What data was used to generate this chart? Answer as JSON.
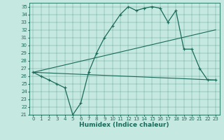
{
  "xlabel": "Humidex (Indice chaleur)",
  "background_color": "#c5e8e0",
  "line_color": "#1a6b5a",
  "xlim": [
    -0.5,
    23.5
  ],
  "ylim": [
    21,
    35.5
  ],
  "xticks": [
    0,
    1,
    2,
    3,
    4,
    5,
    6,
    7,
    8,
    9,
    10,
    11,
    12,
    13,
    14,
    15,
    16,
    17,
    18,
    19,
    20,
    21,
    22,
    23
  ],
  "yticks": [
    21,
    22,
    23,
    24,
    25,
    26,
    27,
    28,
    29,
    30,
    31,
    32,
    33,
    34,
    35
  ],
  "line1_x": [
    0,
    1,
    2,
    3,
    4,
    5,
    6,
    7,
    8,
    9,
    10,
    11,
    12,
    13,
    14,
    15,
    16,
    17,
    18,
    19,
    20,
    21,
    22,
    23
  ],
  "line1_y": [
    26.5,
    26.0,
    25.5,
    25.0,
    24.5,
    21.0,
    22.5,
    26.5,
    29.0,
    31.0,
    32.5,
    34.0,
    35.0,
    34.5,
    34.8,
    35.0,
    34.8,
    33.0,
    34.5,
    29.5,
    29.5,
    27.0,
    25.5,
    25.5
  ],
  "line2_x": [
    0,
    23
  ],
  "line2_y": [
    26.5,
    32.0
  ],
  "line3_x": [
    0,
    23
  ],
  "line3_y": [
    26.5,
    25.5
  ],
  "tick_fontsize": 5,
  "xlabel_fontsize": 6.5
}
